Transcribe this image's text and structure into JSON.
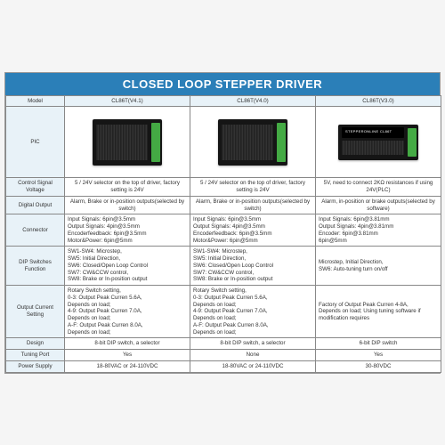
{
  "title": "CLOSED LOOP STEPPER  DRIVER",
  "cols": [
    "Model",
    "CL86T(V4.1)",
    "CL86T(V4.0)",
    "CL86T(V3.0)"
  ],
  "picLabel": "PIC",
  "rows": [
    {
      "label": "Control Signal Voltage",
      "c": [
        "5 / 24V selector on the top of driver, factory setting is 24V",
        "5 / 24V selector on the top of driver, factory setting is 24V",
        "5V, need to connect 2KΩ resistances if  using 24V(PLC)"
      ]
    },
    {
      "label": "Digital Output",
      "c": [
        "Alarm, Brake or in-position outputs(selected by switch)",
        "Alarm, Brake or in-position outputs(selected by switch)",
        "Alarm, in-position or brake outputs(selected by software)"
      ]
    },
    {
      "label": "Connector",
      "c": [
        "Input Signals: 6pin@3.5mm\nOutput Signals: 4pin@3.5mm\nEncoderfeedback: 6pin@3.5mm\nMotor&Power: 6pin@5mm",
        "Input Signals: 6pin@3.5mm\nOutput Signals: 4pin@3.5mm\nEncoderfeedback: 6pin@3.5mm\nMotor&Power: 6pin@5mm",
        "Input Signals: 6pin@3.81mm\nOutput Signals: 4pin@3.81mm\nEncoder: 6pin@3.81mm\n6pin@5mm"
      ]
    },
    {
      "label": "DIP Switches Function",
      "c": [
        "SW1-SW4: Microstep,\nSW5: Initial Direction,\nSW6:  Closed/Open Loop Control\nSW7: CW&CCW control,\nSW8:  Brake or In-position output",
        "SW1-SW4: Microstep,\nSW5: Initial Direction,\nSW6:  Closed/Open Loop Control\nSW7: CW&CCW control,\nSW8:  Brake or In-position output",
        "Microstep, Initial Direction,\nSW6:  Auto-tuning turn on/off"
      ]
    },
    {
      "label": "Output Current Setting",
      "c": [
        "Rotary Switch setting,\n0-3:  Output Peak Curren 5.6A,\nDepends on load;\n4-9:  Output Peak Curren 7.0A,\nDepends on load;\nA-F:  Output Peak Curren 8.0A,\nDepends on load;",
        "Rotary Switch setting,\n0-3:  Output Peak Curren 5.6A,\nDepends on load;\n4-9:  Output Peak Curren 7.0A,\nDepends on load;\nA-F:  Output Peak Curren 8.0A,\nDepends on load;",
        "Factory of Output Peak Curren 4-8A,\nDepends on load; Using tuning software if modification requires"
      ]
    },
    {
      "label": "Design",
      "c": [
        "8-bit DIP switch, a selector",
        "8-bit DIP switch, a selector",
        "6-bit DIP switch"
      ]
    },
    {
      "label": "Tuning Port",
      "c": [
        "Yes",
        "None",
        "Yes"
      ]
    },
    {
      "label": "Power Supply",
      "c": [
        "18-80VAC or 24-110VDC",
        "18-80VAC or 24-110VDC",
        "30-80VDC"
      ]
    }
  ],
  "colors": {
    "header": "#2b7fb8",
    "band": "#e8f2f8",
    "border": "#888"
  }
}
